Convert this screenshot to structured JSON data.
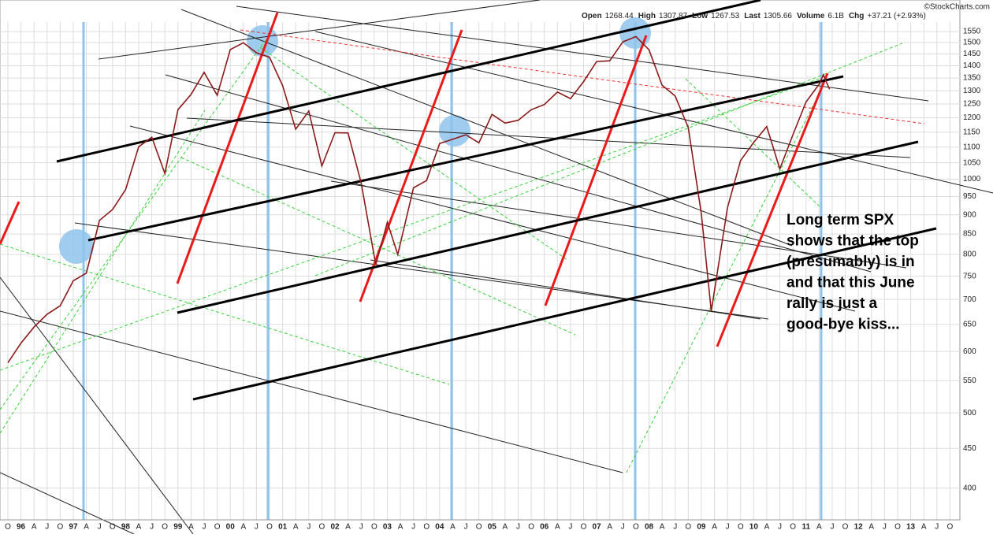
{
  "chart_data": {
    "type": "line",
    "watermark": "©StockCharts.com",
    "quote": [
      {
        "label": "Open",
        "value": 1268.44
      },
      {
        "label": "High",
        "value": 1307.87
      },
      {
        "label": "Low",
        "value": 1267.53
      },
      {
        "label": "Last",
        "value": 1305.66
      },
      {
        "label": "Volume",
        "value": "6.1B"
      },
      {
        "label": "Chg",
        "value": "+37.21 (+2.93%)"
      }
    ],
    "annotation": [
      "Long term SPX",
      "shows that the top",
      "(presumably) is in",
      "and that this June",
      "rally is just a",
      "good-bye kiss..."
    ],
    "log_scale": true,
    "grid": true,
    "xlim": [
      1995.6,
      2013.94
    ],
    "ylim": [
      364,
      1594
    ],
    "yticks": [
      400,
      450,
      500,
      550,
      600,
      650,
      700,
      750,
      800,
      850,
      900,
      950,
      1000,
      1050,
      1100,
      1150,
      1200,
      1250,
      1300,
      1350,
      1400,
      1450,
      1500,
      1550
    ],
    "xticks": [
      {
        "value": 1995.75,
        "label": "O"
      },
      {
        "value": 1996,
        "label": "96"
      },
      {
        "value": 1996.25,
        "label": "A"
      },
      {
        "value": 1996.5,
        "label": "J"
      },
      {
        "value": 1996.75,
        "label": "O"
      },
      {
        "value": 1997,
        "label": "97"
      },
      {
        "value": 1997.25,
        "label": "A"
      },
      {
        "value": 1997.5,
        "label": "J"
      },
      {
        "value": 1997.75,
        "label": "O"
      },
      {
        "value": 1998,
        "label": "98"
      },
      {
        "value": 1998.25,
        "label": "A"
      },
      {
        "value": 1998.5,
        "label": "J"
      },
      {
        "value": 1998.75,
        "label": "O"
      },
      {
        "value": 1999,
        "label": "99"
      },
      {
        "value": 1999.25,
        "label": "A"
      },
      {
        "value": 1999.5,
        "label": "J"
      },
      {
        "value": 1999.75,
        "label": "O"
      },
      {
        "value": 2000,
        "label": "00"
      },
      {
        "value": 2000.25,
        "label": "A"
      },
      {
        "value": 2000.5,
        "label": "J"
      },
      {
        "value": 2000.75,
        "label": "O"
      },
      {
        "value": 2001,
        "label": "01"
      },
      {
        "value": 2001.25,
        "label": "A"
      },
      {
        "value": 2001.5,
        "label": "J"
      },
      {
        "value": 2001.75,
        "label": "O"
      },
      {
        "value": 2002,
        "label": "02"
      },
      {
        "value": 2002.25,
        "label": "A"
      },
      {
        "value": 2002.5,
        "label": "J"
      },
      {
        "value": 2002.75,
        "label": "O"
      },
      {
        "value": 2003,
        "label": "03"
      },
      {
        "value": 2003.25,
        "label": "A"
      },
      {
        "value": 2003.5,
        "label": "J"
      },
      {
        "value": 2003.75,
        "label": "O"
      },
      {
        "value": 2004,
        "label": "04"
      },
      {
        "value": 2004.25,
        "label": "A"
      },
      {
        "value": 2004.5,
        "label": "J"
      },
      {
        "value": 2004.75,
        "label": "O"
      },
      {
        "value": 2005,
        "label": "05"
      },
      {
        "value": 2005.25,
        "label": "A"
      },
      {
        "value": 2005.5,
        "label": "J"
      },
      {
        "value": 2005.75,
        "label": "O"
      },
      {
        "value": 2006,
        "label": "06"
      },
      {
        "value": 2006.25,
        "label": "A"
      },
      {
        "value": 2006.5,
        "label": "J"
      },
      {
        "value": 2006.75,
        "label": "O"
      },
      {
        "value": 2007,
        "label": "07"
      },
      {
        "value": 2007.25,
        "label": "A"
      },
      {
        "value": 2007.5,
        "label": "J"
      },
      {
        "value": 2007.75,
        "label": "O"
      },
      {
        "value": 2008,
        "label": "08"
      },
      {
        "value": 2008.25,
        "label": "A"
      },
      {
        "value": 2008.5,
        "label": "J"
      },
      {
        "value": 2008.75,
        "label": "O"
      },
      {
        "value": 2009,
        "label": "09"
      },
      {
        "value": 2009.25,
        "label": "A"
      },
      {
        "value": 2009.5,
        "label": "J"
      },
      {
        "value": 2009.75,
        "label": "O"
      },
      {
        "value": 2010,
        "label": "10"
      },
      {
        "value": 2010.25,
        "label": "A"
      },
      {
        "value": 2010.5,
        "label": "J"
      },
      {
        "value": 2010.75,
        "label": "O"
      },
      {
        "value": 2011,
        "label": "11"
      },
      {
        "value": 2011.25,
        "label": "A"
      },
      {
        "value": 2011.5,
        "label": "J"
      },
      {
        "value": 2011.75,
        "label": "O"
      },
      {
        "value": 2012,
        "label": "12"
      },
      {
        "value": 2012.25,
        "label": "A"
      },
      {
        "value": 2012.5,
        "label": "J"
      },
      {
        "value": 2012.75,
        "label": "O"
      },
      {
        "value": 2013,
        "label": "13"
      },
      {
        "value": 2013.25,
        "label": "A"
      },
      {
        "value": 2013.5,
        "label": "J"
      },
      {
        "value": 2013.75,
        "label": "O"
      }
    ],
    "series": [
      {
        "name": "SPX",
        "color": "#8b1a1a",
        "x": [
          1995.75,
          1996.0,
          1996.25,
          1996.5,
          1996.75,
          1997.0,
          1997.25,
          1997.5,
          1997.75,
          1998.0,
          1998.25,
          1998.5,
          1998.75,
          1999.0,
          1999.25,
          1999.5,
          1999.75,
          2000.0,
          2000.25,
          2000.5,
          2000.75,
          2001.0,
          2001.25,
          2001.5,
          2001.75,
          2002.0,
          2002.25,
          2002.5,
          2002.78,
          2003.0,
          2003.2,
          2003.5,
          2003.75,
          2004.0,
          2004.25,
          2004.5,
          2004.75,
          2005.0,
          2005.25,
          2005.5,
          2005.75,
          2006.0,
          2006.25,
          2006.5,
          2006.75,
          2007.0,
          2007.25,
          2007.5,
          2007.75,
          2008.0,
          2008.25,
          2008.5,
          2008.75,
          2009.0,
          2009.19,
          2009.5,
          2009.75,
          2010.0,
          2010.25,
          2010.5,
          2010.75,
          2011.0,
          2011.25,
          2011.33,
          2011.45
        ],
        "values": [
          580,
          615,
          645,
          670,
          687,
          740,
          757,
          885,
          914,
          970,
          1101,
          1133,
          1017,
          1229,
          1286,
          1373,
          1283,
          1469,
          1499,
          1455,
          1436,
          1320,
          1160,
          1224,
          1040,
          1148,
          1147,
          990,
          776,
          880,
          800,
          975,
          996,
          1112,
          1126,
          1141,
          1114,
          1212,
          1181,
          1191,
          1229,
          1248,
          1295,
          1270,
          1336,
          1418,
          1421,
          1503,
          1527,
          1468,
          1322,
          1280,
          1166,
          903,
          676,
          919,
          1057,
          1115,
          1169,
          1031,
          1141,
          1257,
          1326,
          1363,
          1306
        ]
      }
    ]
  }
}
